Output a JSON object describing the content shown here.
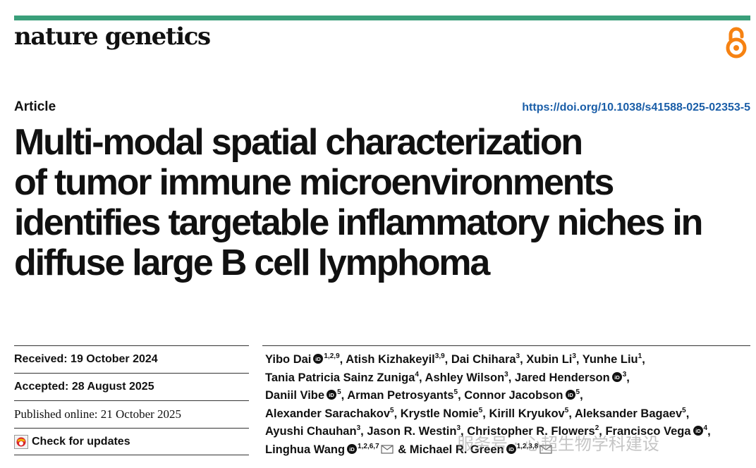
{
  "journal": {
    "name": "nature genetics"
  },
  "icons": {
    "open_access": "open-access-icon",
    "orcid": "orcid-icon",
    "mail": "envelope-icon",
    "check_updates": "crossmark-icon",
    "accent": "#3a9f7a",
    "oa_color": "#f68212",
    "link_color": "#1a5ea8"
  },
  "article": {
    "type": "Article",
    "doi": "https://doi.org/10.1038/s41588-025-02353-5",
    "title_lines": [
      "Multi-modal spatial characterization",
      "of tumor immune microenvironments",
      "identifies targetable inflammatory niches in",
      "diffuse large B  cell lymphoma"
    ]
  },
  "meta": {
    "received_label": "Received:",
    "received_value": "19 October 2024",
    "accepted_label": "Accepted:",
    "accepted_value": "28 August 2025",
    "published_label": "Published online:",
    "published_value": "21 October 2025",
    "check_label": "Check for updates"
  },
  "authors": [
    [
      {
        "n": "Yibo Dai",
        "o": 1,
        "s": "1,2,9"
      },
      {
        "n": "Atish Kizhakeyil",
        "s": "3,9"
      },
      {
        "n": "Dai Chihara",
        "s": "3"
      },
      {
        "n": "Xubin Li",
        "s": "3"
      },
      {
        "n": "Yunhe Liu",
        "s": "1"
      }
    ],
    [
      {
        "n": "Tania Patricia Sainz Zuniga",
        "s": "4"
      },
      {
        "n": "Ashley Wilson",
        "s": "3"
      },
      {
        "n": "Jared Henderson",
        "o": 1,
        "s": "3"
      }
    ],
    [
      {
        "n": "Daniil Vibe",
        "o": 1,
        "s": "5"
      },
      {
        "n": "Arman Petrosyants",
        "s": "5"
      },
      {
        "n": "Connor Jacobson",
        "o": 1,
        "s": "5"
      }
    ],
    [
      {
        "n": "Alexander Sarachakov",
        "s": "5"
      },
      {
        "n": "Krystle Nomie",
        "s": "5"
      },
      {
        "n": "Kirill Kryukov",
        "s": "5"
      },
      {
        "n": "Aleksander Bagaev",
        "s": "5"
      }
    ],
    [
      {
        "n": "Ayushi Chauhan",
        "s": "3"
      },
      {
        "n": "Jason R. Westin",
        "s": "3"
      },
      {
        "n": "Christopher R. Flowers",
        "s": "2"
      },
      {
        "n": "Francisco Vega",
        "o": 1,
        "s": "4"
      }
    ],
    [
      {
        "n": "Linghua Wang",
        "o": 1,
        "s": "1,2,6,7",
        "m": 1
      },
      {
        "n": "Michael R. Green",
        "o": 1,
        "s": "1,2,3,8",
        "m": 1,
        "amp": 1
      }
    ]
  ],
  "watermark": "服务号 · 心超生物学科建设"
}
